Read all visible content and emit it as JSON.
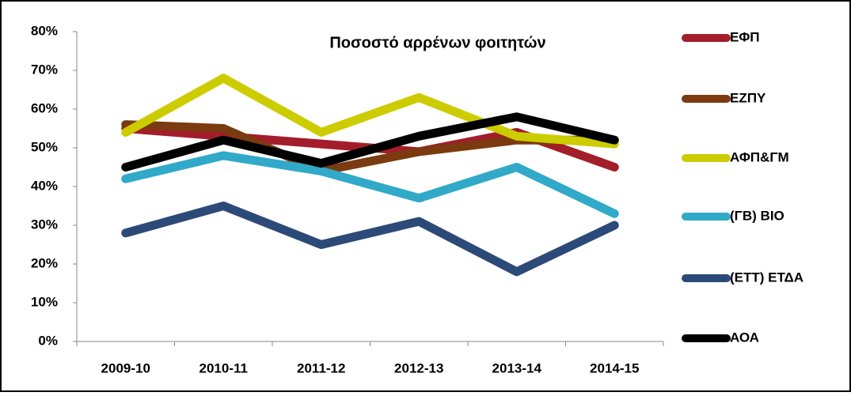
{
  "chart_data": {
    "type": "line",
    "title": "Ποσοστό αρρένων φοιτητών",
    "categories": [
      "2009-10",
      "2010-11",
      "2011-12",
      "2012-13",
      "2013-14",
      "2014-15"
    ],
    "series": [
      {
        "name": "ΕΦΠ",
        "color": "#a31d2a",
        "values": [
          55,
          53,
          51,
          49,
          54,
          45
        ]
      },
      {
        "name": "ΕΖΠΥ",
        "color": "#7b3a10",
        "values": [
          56,
          55,
          44,
          49,
          52,
          52
        ]
      },
      {
        "name": "ΑΦΠ&ΓΜ",
        "color": "#cccc00",
        "values": [
          54,
          68,
          54,
          63,
          53,
          51
        ]
      },
      {
        "name": "(ΓΒ) ΒΙΟ",
        "color": "#31a9c9",
        "values": [
          42,
          48,
          44,
          37,
          45,
          33
        ]
      },
      {
        "name": "(ΕΤΤ) ΕΤΔΑ",
        "color": "#2c4a78",
        "values": [
          28,
          35,
          25,
          31,
          18,
          30
        ]
      },
      {
        "name": "ΑΟΑ",
        "color": "#000000",
        "values": [
          45,
          52,
          46,
          53,
          58,
          52
        ]
      }
    ],
    "ylim": [
      0,
      80
    ],
    "yticks": [
      {
        "value": 0,
        "label": "0%"
      },
      {
        "value": 10,
        "label": "10%"
      },
      {
        "value": 20,
        "label": "20%"
      },
      {
        "value": 30,
        "label": "30%"
      },
      {
        "value": 40,
        "label": "40%"
      },
      {
        "value": 50,
        "label": "50%"
      },
      {
        "value": 60,
        "label": "60%"
      },
      {
        "value": 70,
        "label": "70%"
      },
      {
        "value": 80,
        "label": "80%"
      }
    ],
    "grid": false,
    "legend": "right"
  }
}
